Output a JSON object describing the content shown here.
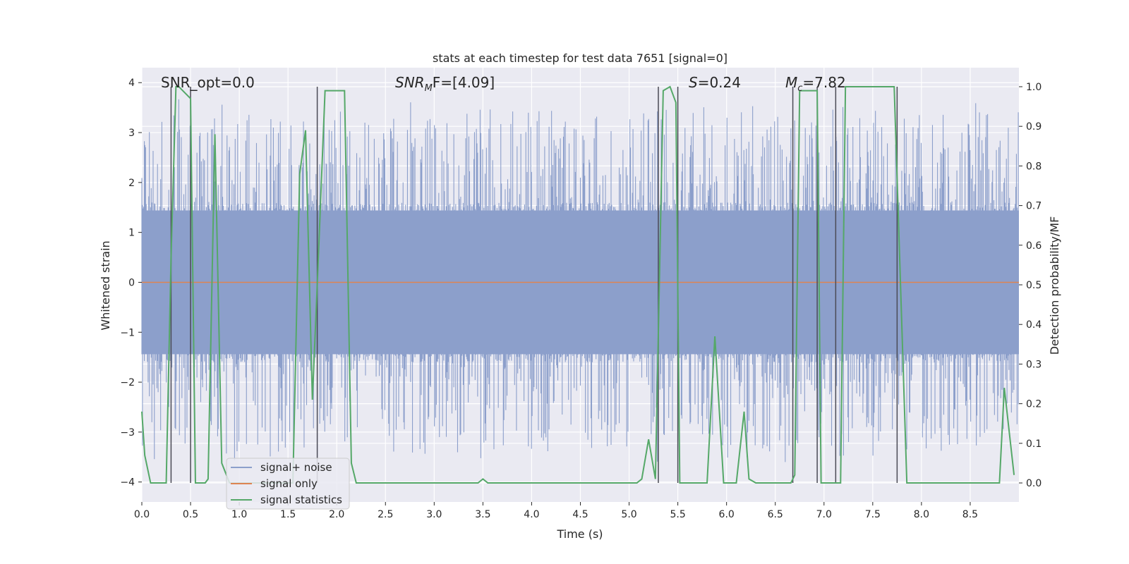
{
  "chart_data": {
    "type": "line",
    "title": "stats at each timestep for test data 7651 [signal=0]",
    "xlabel": "Time (s)",
    "ylabel": "Whitened strain",
    "y2label": "Detection probability/MF",
    "xlim": [
      0.0,
      9.0
    ],
    "ylim": [
      -4.4,
      4.3
    ],
    "y2lim": [
      -0.048,
      1.048
    ],
    "xticks": [
      0.0,
      0.5,
      1.0,
      1.5,
      2.0,
      2.5,
      3.0,
      3.5,
      4.0,
      4.5,
      5.0,
      5.5,
      6.0,
      6.5,
      7.0,
      7.5,
      8.0,
      8.5
    ],
    "xtick_labels": [
      "0.0",
      "0.5",
      "1.0",
      "1.5",
      "2.0",
      "2.5",
      "3.0",
      "3.5",
      "4.0",
      "4.5",
      "5.0",
      "5.5",
      "6.0",
      "6.5",
      "7.0",
      "7.5",
      "8.0",
      "8.5"
    ],
    "yticks": [
      -4,
      -3,
      -2,
      -1,
      0,
      1,
      2,
      3,
      4
    ],
    "ytick_labels": [
      "−4",
      "−3",
      "−2",
      "−1",
      "0",
      "1",
      "2",
      "3",
      "4"
    ],
    "y2ticks": [
      0.0,
      0.1,
      0.2,
      0.3,
      0.4,
      0.5,
      0.6,
      0.7,
      0.8,
      0.9,
      1.0
    ],
    "y2tick_labels": [
      "0.0",
      "0.1",
      "0.2",
      "0.3",
      "0.4",
      "0.5",
      "0.6",
      "0.7",
      "0.8",
      "0.9",
      "1.0"
    ],
    "annotations": [
      {
        "id": "snr-opt",
        "text": "SNR_opt=0.0"
      },
      {
        "id": "snr-mf",
        "base": "SNR",
        "sub": "M",
        "rest": "F=[4.09]"
      },
      {
        "id": "s-val",
        "base": "S",
        "rest": "=0.24"
      },
      {
        "id": "mc-val",
        "base": "M",
        "sub": "c",
        "rest": "=7.82"
      }
    ],
    "series": [
      {
        "name": "signal+ noise",
        "color": "#8c9fcb",
        "axis": "left",
        "note": "dense whitened noise; envelope approx ±1.6 with spikes to ±3.7",
        "envelope": [
          1.6,
          -1.6
        ],
        "spike_max": 3.7,
        "n_samples": 1400
      },
      {
        "name": "signal only",
        "color": "#dd8452",
        "axis": "left",
        "x": [
          0.0,
          9.0
        ],
        "y": [
          0.0,
          0.0
        ]
      },
      {
        "name": "signal statistics",
        "color": "#55a868",
        "axis": "right",
        "x": [
          0.0,
          0.03,
          0.09,
          0.2,
          0.25,
          0.3,
          0.35,
          0.38,
          0.5,
          0.55,
          0.58,
          0.65,
          0.68,
          0.75,
          0.82,
          0.9,
          1.0,
          1.55,
          1.62,
          1.68,
          1.75,
          1.8,
          1.88,
          1.92,
          2.08,
          2.15,
          2.2,
          3.45,
          3.5,
          3.55,
          3.65,
          5.08,
          5.13,
          5.2,
          5.27,
          5.35,
          5.42,
          5.48,
          5.52,
          5.58,
          5.8,
          5.88,
          5.97,
          6.1,
          6.18,
          6.23,
          6.3,
          6.66,
          6.7,
          6.75,
          6.93,
          6.97,
          7.05,
          7.17,
          7.22,
          7.72,
          7.85,
          7.9,
          8.7,
          8.8,
          8.85,
          8.95
        ],
        "y": [
          0.18,
          0.07,
          0.0,
          0.0,
          0.0,
          0.57,
          1.0,
          1.0,
          0.97,
          0.0,
          0.0,
          0.0,
          0.01,
          0.88,
          0.05,
          0.0,
          0.0,
          0.0,
          0.78,
          0.89,
          0.21,
          0.5,
          0.99,
          0.99,
          0.99,
          0.05,
          0.0,
          0.0,
          0.01,
          0.0,
          0.0,
          0.0,
          0.01,
          0.11,
          0.01,
          0.99,
          1.0,
          0.96,
          0.0,
          0.0,
          0.0,
          0.37,
          0.0,
          0.0,
          0.18,
          0.01,
          0.0,
          0.0,
          0.02,
          0.99,
          0.99,
          0.0,
          0.0,
          0.0,
          1.0,
          1.0,
          0.0,
          0.0,
          0.0,
          0.0,
          0.24,
          0.02
        ]
      }
    ],
    "vlines_x": [
      0.3,
      0.5,
      1.8,
      5.3,
      5.5,
      6.68,
      6.93,
      7.12,
      7.75
    ],
    "legend": {
      "position": "lower-left",
      "entries": [
        "signal+ noise",
        "signal only",
        "signal statistics"
      ]
    },
    "grid": true
  }
}
